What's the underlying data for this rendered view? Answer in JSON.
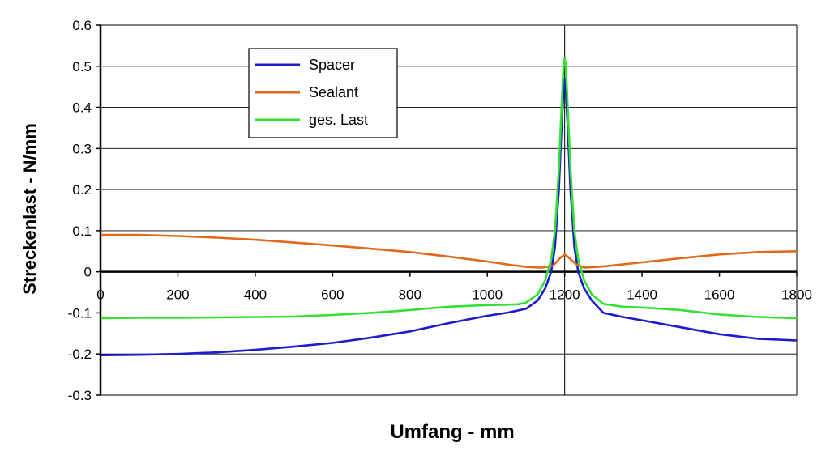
{
  "chart_data": {
    "type": "line",
    "title": "",
    "xlabel": "Umfang - mm",
    "ylabel": "Streckenlast - N/mm",
    "xlim": [
      0,
      1800
    ],
    "ylim": [
      -0.3,
      0.6
    ],
    "x_ticks": [
      0,
      200,
      400,
      600,
      800,
      1000,
      1200,
      1400,
      1600,
      1800
    ],
    "y_ticks": [
      0.6,
      0.5,
      0.4,
      0.3,
      0.2,
      0.1,
      0,
      -0.1,
      -0.2,
      -0.3
    ],
    "x_tick_labels": [
      "0",
      "200",
      "400",
      "600",
      "800",
      "1000",
      "1200",
      "1400",
      "1600",
      "1800"
    ],
    "y_tick_labels": [
      "0.6",
      "0.5",
      "0.4",
      "0.3",
      "0.2",
      "0.1",
      "0",
      "-0.1",
      "-0.2",
      "-0.3"
    ],
    "grid": "horizontal",
    "legend_position": "top-left",
    "series": [
      {
        "name": "Spacer",
        "color": "#1c1ccc",
        "points": [
          [
            0,
            -0.203
          ],
          [
            100,
            -0.202
          ],
          [
            200,
            -0.2
          ],
          [
            300,
            -0.196
          ],
          [
            400,
            -0.19
          ],
          [
            500,
            -0.182
          ],
          [
            600,
            -0.173
          ],
          [
            700,
            -0.16
          ],
          [
            800,
            -0.145
          ],
          [
            900,
            -0.125
          ],
          [
            1000,
            -0.107
          ],
          [
            1050,
            -0.1
          ],
          [
            1100,
            -0.09
          ],
          [
            1130,
            -0.07
          ],
          [
            1150,
            -0.04
          ],
          [
            1165,
            0.0
          ],
          [
            1175,
            0.06
          ],
          [
            1185,
            0.2
          ],
          [
            1192,
            0.35
          ],
          [
            1197,
            0.44
          ],
          [
            1200,
            0.47
          ],
          [
            1203,
            0.44
          ],
          [
            1208,
            0.35
          ],
          [
            1215,
            0.2
          ],
          [
            1225,
            0.06
          ],
          [
            1235,
            0.0
          ],
          [
            1250,
            -0.04
          ],
          [
            1270,
            -0.07
          ],
          [
            1300,
            -0.1
          ],
          [
            1350,
            -0.11
          ],
          [
            1400,
            -0.118
          ],
          [
            1500,
            -0.135
          ],
          [
            1600,
            -0.152
          ],
          [
            1700,
            -0.163
          ],
          [
            1800,
            -0.167
          ]
        ]
      },
      {
        "name": "Sealant",
        "color": "#e06a1a",
        "points": [
          [
            0,
            0.09
          ],
          [
            100,
            0.09
          ],
          [
            200,
            0.087
          ],
          [
            300,
            0.083
          ],
          [
            400,
            0.078
          ],
          [
            500,
            0.071
          ],
          [
            600,
            0.064
          ],
          [
            700,
            0.056
          ],
          [
            800,
            0.048
          ],
          [
            900,
            0.037
          ],
          [
            1000,
            0.025
          ],
          [
            1050,
            0.018
          ],
          [
            1100,
            0.012
          ],
          [
            1140,
            0.01
          ],
          [
            1170,
            0.015
          ],
          [
            1190,
            0.035
          ],
          [
            1200,
            0.042
          ],
          [
            1210,
            0.035
          ],
          [
            1230,
            0.018
          ],
          [
            1250,
            0.01
          ],
          [
            1300,
            0.013
          ],
          [
            1400,
            0.023
          ],
          [
            1500,
            0.033
          ],
          [
            1600,
            0.042
          ],
          [
            1700,
            0.048
          ],
          [
            1800,
            0.05
          ]
        ]
      },
      {
        "name": "ges. Last",
        "color": "#33e033",
        "points": [
          [
            0,
            -0.113
          ],
          [
            100,
            -0.112
          ],
          [
            200,
            -0.112
          ],
          [
            300,
            -0.111
          ],
          [
            400,
            -0.11
          ],
          [
            500,
            -0.109
          ],
          [
            600,
            -0.105
          ],
          [
            700,
            -0.1
          ],
          [
            800,
            -0.093
          ],
          [
            900,
            -0.085
          ],
          [
            1000,
            -0.081
          ],
          [
            1050,
            -0.08
          ],
          [
            1080,
            -0.079
          ],
          [
            1100,
            -0.075
          ],
          [
            1130,
            -0.055
          ],
          [
            1150,
            -0.02
          ],
          [
            1165,
            0.03
          ],
          [
            1175,
            0.1
          ],
          [
            1185,
            0.25
          ],
          [
            1192,
            0.4
          ],
          [
            1197,
            0.5
          ],
          [
            1200,
            0.52
          ],
          [
            1203,
            0.5
          ],
          [
            1208,
            0.4
          ],
          [
            1215,
            0.25
          ],
          [
            1225,
            0.1
          ],
          [
            1235,
            0.03
          ],
          [
            1250,
            -0.02
          ],
          [
            1270,
            -0.055
          ],
          [
            1300,
            -0.078
          ],
          [
            1350,
            -0.085
          ],
          [
            1400,
            -0.087
          ],
          [
            1500,
            -0.093
          ],
          [
            1600,
            -0.104
          ],
          [
            1700,
            -0.11
          ],
          [
            1800,
            -0.113
          ]
        ]
      }
    ]
  }
}
